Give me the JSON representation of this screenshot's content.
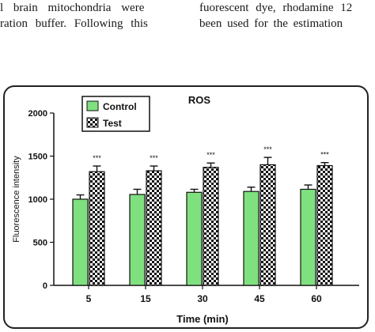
{
  "page_text": {
    "left_line_1": "l brain mitochondria were",
    "left_line_2": "ration buffer. Following this",
    "right_line_1": "fuorescent dye, rhodamine 12",
    "right_line_2": "been used for the estimation"
  },
  "chart_data": {
    "type": "bar",
    "title": "ROS",
    "xlabel": "Time (min)",
    "ylabel": "Fluorescence intensity",
    "categories": [
      "5",
      "15",
      "30",
      "45",
      "60"
    ],
    "ylim": [
      0,
      2000
    ],
    "yticks": [
      0,
      500,
      1000,
      1500,
      2000
    ],
    "grid": false,
    "legend_position": "top-left",
    "series": [
      {
        "name": "Control",
        "color": "#7fe07f",
        "pattern": "solid",
        "values": [
          1000,
          1055,
          1080,
          1090,
          1115
        ],
        "errors": [
          50,
          60,
          35,
          50,
          50
        ]
      },
      {
        "name": "Test",
        "color": "#111111",
        "pattern": "checkered",
        "values": [
          1320,
          1330,
          1370,
          1400,
          1390
        ],
        "errors": [
          65,
          55,
          50,
          85,
          35
        ]
      }
    ],
    "annotations": [
      "***",
      "***",
      "***",
      "***",
      "***"
    ]
  }
}
